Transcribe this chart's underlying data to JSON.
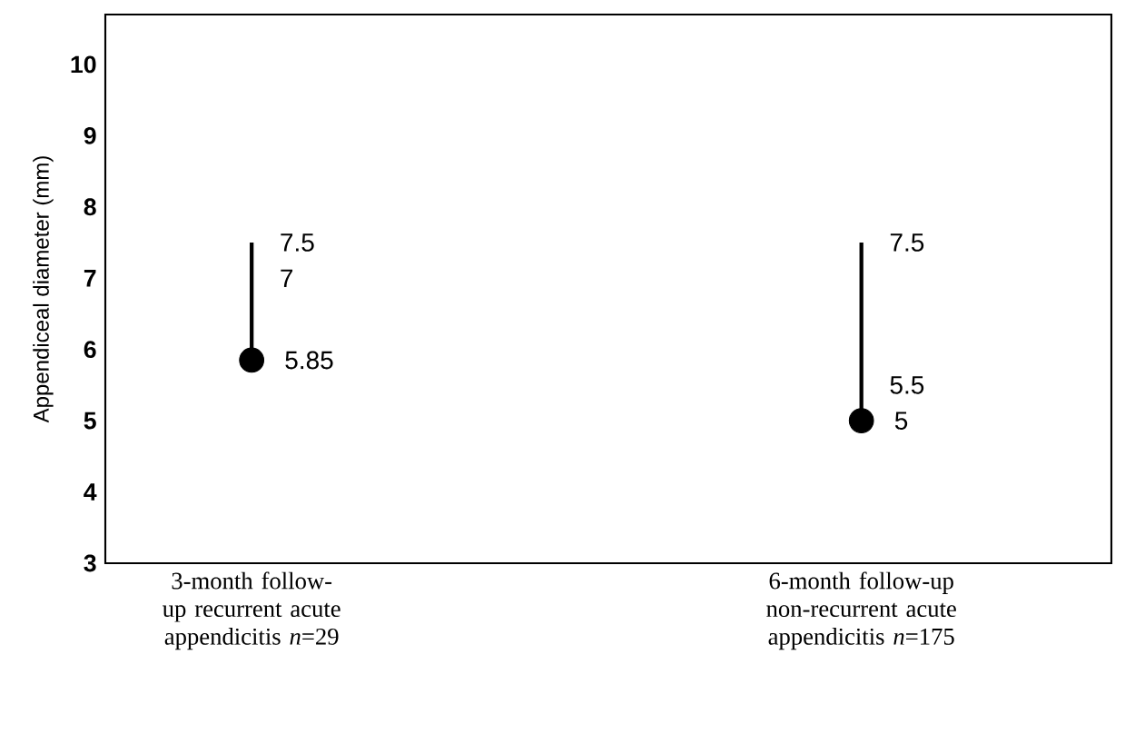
{
  "chart_data": {
    "type": "scatter",
    "ylabel": "Appendiceal diameter (mm)",
    "categories": [
      "3-month follow-up recurrent acute appendicitis *n*=29",
      "6-month follow-up non-recurrent acute appendicitis *n*=175"
    ],
    "values": [
      5.85,
      5
    ],
    "errors": [
      [
        5.85,
        7.5
      ],
      [
        5,
        7.5
      ]
    ],
    "color": "#000000",
    "marker": "circle",
    "data_labels": true,
    "ylim": [
      3,
      10.7
    ],
    "yticks": [
      3,
      4,
      5,
      6,
      7,
      8,
      9,
      10
    ],
    "annotations": [
      {
        "text": "7.5",
        "x": "3-month follow-up recurrent acute appendicitis *n*=29",
        "y": 7.5
      },
      {
        "text": "7",
        "x": "3-month follow-up recurrent acute appendicitis *n*=29",
        "y": 7
      },
      {
        "text": "7.5",
        "x": "6-month follow-up non-recurrent acute appendicitis *n*=175",
        "y": 7.5
      },
      {
        "text": "5.5",
        "x": "6-month follow-up non-recurrent acute appendicitis *n*=175",
        "y": 5.5
      }
    ]
  }
}
